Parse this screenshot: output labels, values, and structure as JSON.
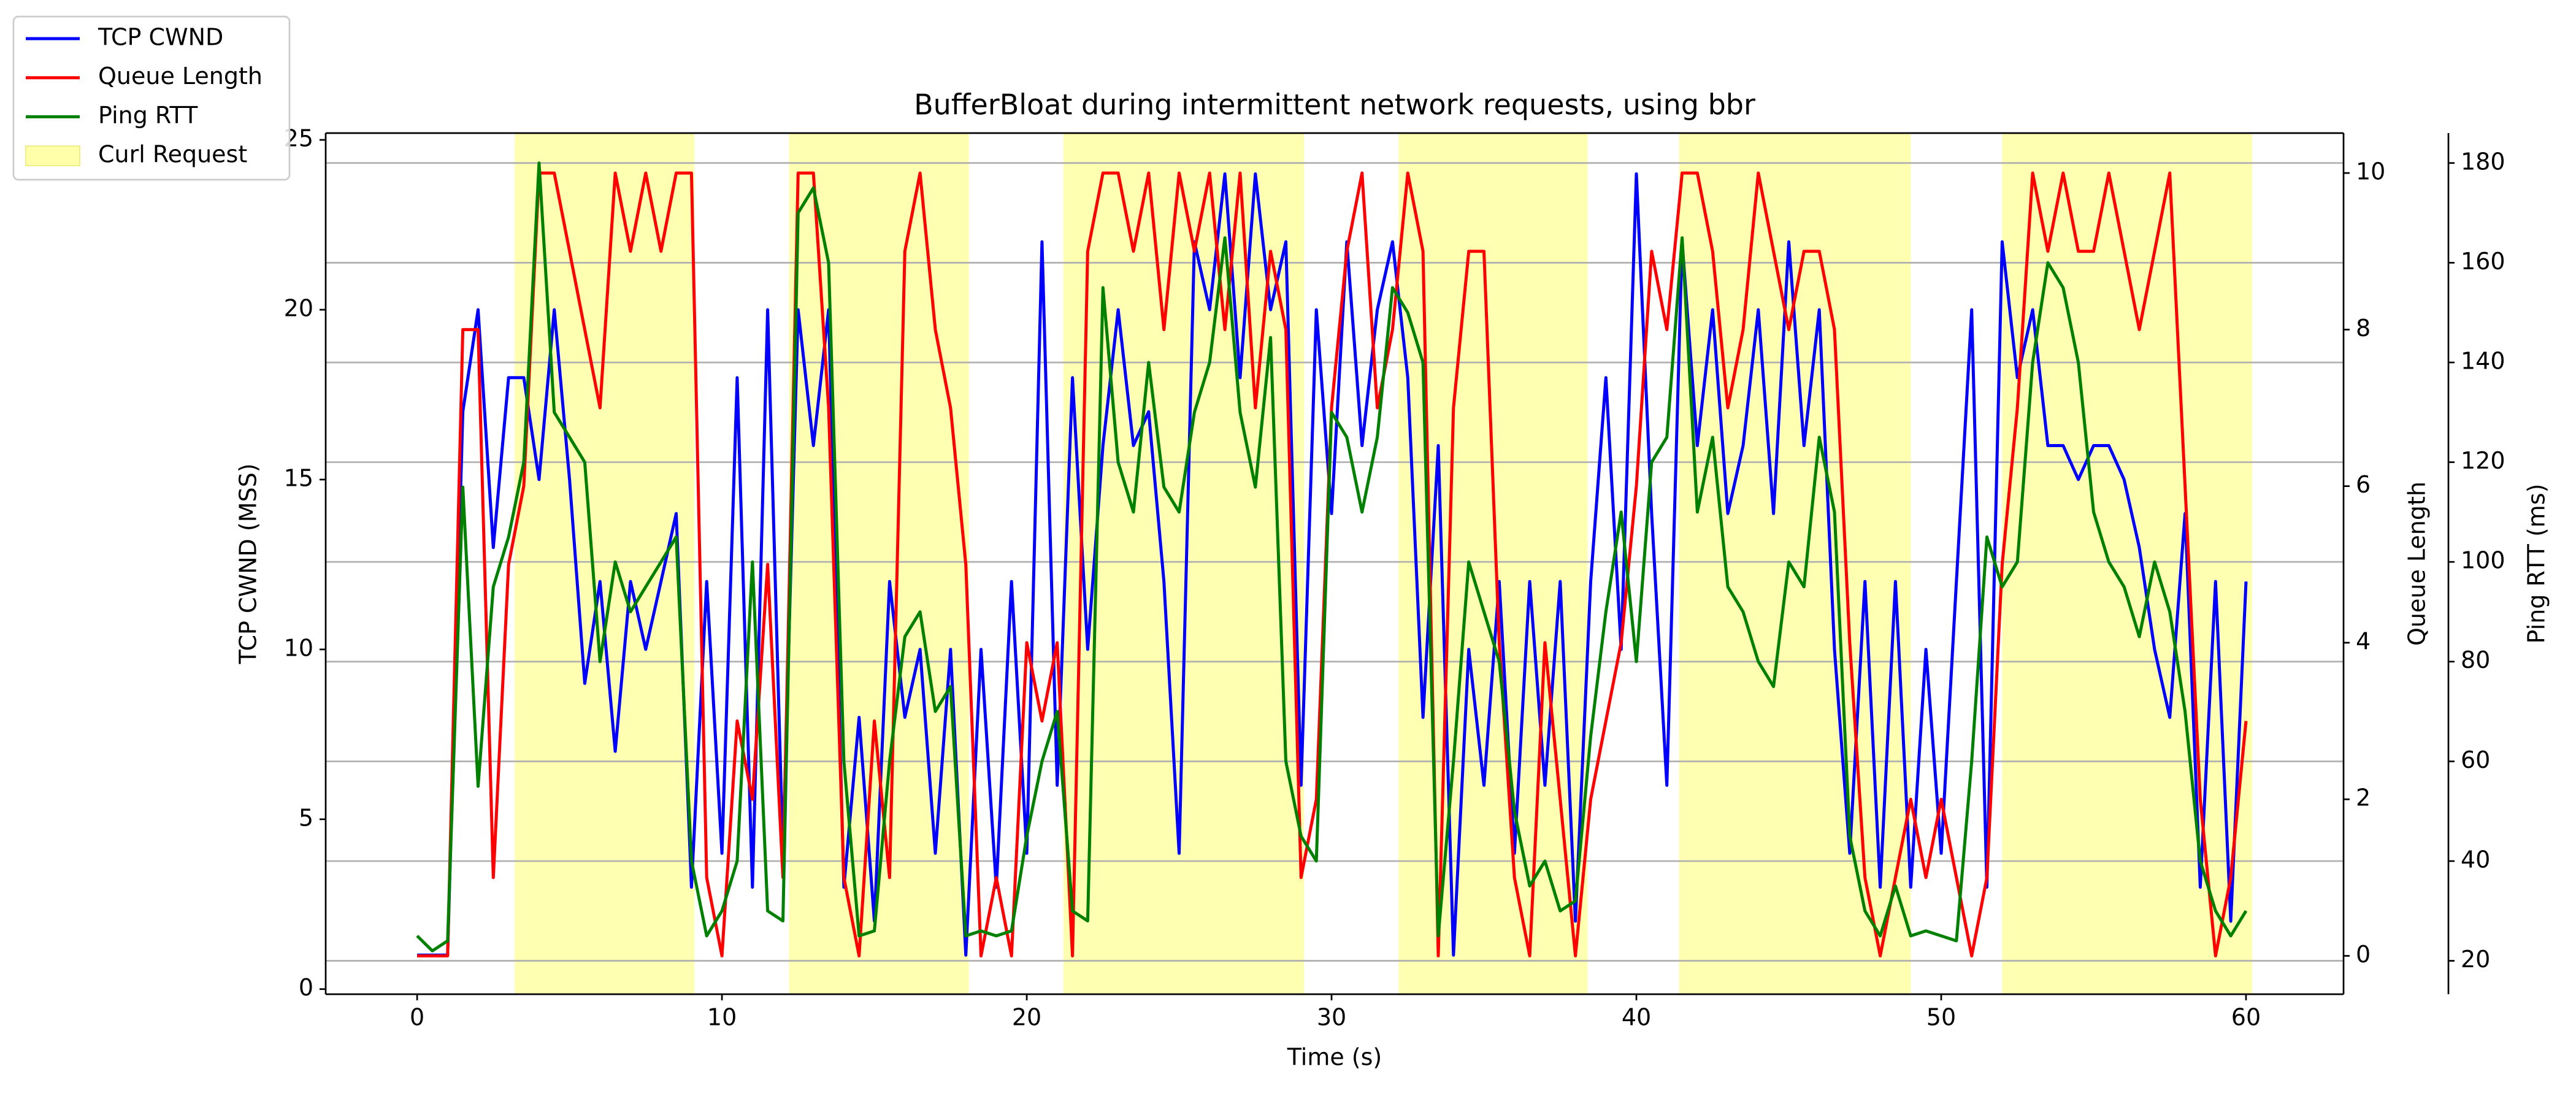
{
  "chart_data": {
    "type": "line",
    "title": "BufferBloat during intermittent network requests, using bbr",
    "xlabel": "Time (s)",
    "ylabel": "TCP CWND (MSS)",
    "y2label": "Queue Length",
    "y3label": "Ping RTT (ms)",
    "x": [
      0,
      0.5,
      1,
      1.5,
      2,
      2.5,
      3,
      3.5,
      4,
      4.5,
      5,
      5.5,
      6,
      6.5,
      7,
      7.5,
      8,
      8.5,
      9,
      9.5,
      10,
      10.5,
      11,
      11.5,
      12,
      12.5,
      13,
      13.5,
      14,
      14.5,
      15,
      15.5,
      16,
      16.5,
      17,
      17.5,
      18,
      18.5,
      19,
      19.5,
      20,
      20.5,
      21,
      21.5,
      22,
      22.5,
      23,
      23.5,
      24,
      24.5,
      25,
      25.5,
      26,
      26.5,
      27,
      27.5,
      28,
      28.5,
      29,
      29.5,
      30,
      30.5,
      31,
      31.5,
      32,
      32.5,
      33,
      33.5,
      34,
      34.5,
      35,
      35.5,
      36,
      36.5,
      37,
      37.5,
      38,
      38.5,
      39,
      39.5,
      40,
      40.5,
      41,
      41.5,
      42,
      42.5,
      43,
      43.5,
      44,
      44.5,
      45,
      45.5,
      46,
      46.5,
      47,
      47.5,
      48,
      48.5,
      49,
      49.5,
      50,
      50.5,
      51,
      51.5,
      52,
      52.5,
      53,
      53.5,
      54,
      54.5,
      55,
      55.5,
      56,
      56.5,
      57,
      57.5,
      58,
      58.5,
      59,
      59.5,
      60
    ],
    "series": [
      {
        "name": "TCP CWND",
        "color": "#0000ff",
        "axis": "y",
        "values": [
          1,
          1,
          1,
          17,
          20,
          13,
          18,
          18,
          15,
          20,
          15,
          9,
          12,
          7,
          12,
          10,
          12,
          14,
          3,
          12,
          4,
          18,
          3,
          20,
          4,
          20,
          16,
          20,
          3,
          8,
          2,
          12,
          8,
          10,
          4,
          10,
          1,
          10,
          3,
          12,
          4,
          22,
          6,
          18,
          10,
          16,
          20,
          16,
          17,
          12,
          4,
          22,
          20,
          24,
          18,
          24,
          20,
          22,
          6,
          20,
          14,
          22,
          16,
          20,
          22,
          18,
          8,
          16,
          1,
          10,
          6,
          12,
          4,
          12,
          6,
          12,
          2,
          12,
          18,
          10,
          24,
          14,
          6,
          22,
          16,
          20,
          14,
          16,
          20,
          14,
          22,
          16,
          20,
          10,
          4,
          12,
          3,
          12,
          3,
          10,
          4,
          12,
          20,
          3,
          22,
          18,
          20,
          16,
          16,
          15,
          16,
          16,
          15,
          13,
          10,
          8,
          14,
          3,
          12,
          2,
          12
        ]
      },
      {
        "name": "Queue Length",
        "color": "#ff0000",
        "axis": "y2",
        "values": [
          0,
          0,
          0,
          8,
          8,
          1,
          5,
          6,
          10,
          10,
          9,
          8,
          7,
          10,
          9,
          10,
          9,
          10,
          10,
          1,
          0,
          3,
          2,
          5,
          1,
          10,
          10,
          7,
          1,
          0,
          3,
          1,
          9,
          10,
          8,
          7,
          5,
          0,
          1,
          0,
          4,
          3,
          4,
          0,
          9,
          10,
          10,
          9,
          10,
          8,
          10,
          9,
          10,
          8,
          10,
          7,
          9,
          8,
          1,
          2,
          7,
          9,
          10,
          7,
          8,
          10,
          9,
          0,
          7,
          9,
          9,
          4,
          1,
          0,
          4,
          2,
          0,
          2,
          3,
          4,
          6,
          9,
          8,
          10,
          10,
          9,
          7,
          8,
          10,
          9,
          8,
          9,
          9,
          8,
          4,
          1,
          0,
          1,
          2,
          1,
          2,
          1,
          0,
          1,
          5,
          7,
          10,
          9,
          10,
          9,
          9,
          10,
          9,
          8,
          9,
          10,
          6,
          2,
          0,
          1,
          3
        ]
      },
      {
        "name": "Ping RTT",
        "color": "#008000",
        "axis": "y3",
        "values": [
          25,
          22,
          24,
          115,
          55,
          95,
          105,
          120,
          180,
          130,
          125,
          120,
          80,
          100,
          90,
          95,
          100,
          105,
          40,
          25,
          30,
          40,
          100,
          30,
          28,
          170,
          175,
          160,
          60,
          25,
          26,
          60,
          85,
          90,
          70,
          75,
          25,
          26,
          25,
          26,
          45,
          60,
          70,
          30,
          28,
          155,
          120,
          110,
          140,
          115,
          110,
          130,
          140,
          165,
          130,
          115,
          145,
          60,
          45,
          40,
          130,
          125,
          110,
          125,
          155,
          150,
          140,
          25,
          60,
          100,
          90,
          80,
          50,
          35,
          40,
          30,
          32,
          65,
          90,
          110,
          80,
          120,
          125,
          165,
          110,
          125,
          95,
          90,
          80,
          75,
          100,
          95,
          125,
          110,
          45,
          30,
          25,
          35,
          25,
          26,
          25,
          24,
          60,
          105,
          95,
          100,
          140,
          160,
          155,
          140,
          110,
          100,
          95,
          85,
          100,
          90,
          70,
          40,
          30,
          25,
          30
        ]
      }
    ],
    "spans": {
      "name": "Curl Request",
      "color": "#ffffaa",
      "ranges": [
        [
          3.2,
          9.1
        ],
        [
          12.2,
          18.1
        ],
        [
          21.2,
          29.1
        ],
        [
          32.2,
          38.4
        ],
        [
          41.4,
          49.0
        ],
        [
          52.0,
          60.2
        ]
      ]
    },
    "xlim": [
      -3,
      63.2
    ],
    "xticks": [
      0,
      10,
      20,
      30,
      40,
      50,
      60
    ],
    "ylim": [
      -0.15,
      25.2
    ],
    "yticks": [
      0,
      5,
      10,
      15,
      20,
      25
    ],
    "y2lim": [
      -0.49,
      10.51
    ],
    "y2ticks": [
      0,
      2,
      4,
      6,
      8,
      10
    ],
    "y3lim": [
      13.3,
      186
    ],
    "y3ticks": [
      20,
      40,
      60,
      80,
      100,
      120,
      140,
      160,
      180
    ],
    "grid": "y3",
    "legend": "upper left"
  }
}
